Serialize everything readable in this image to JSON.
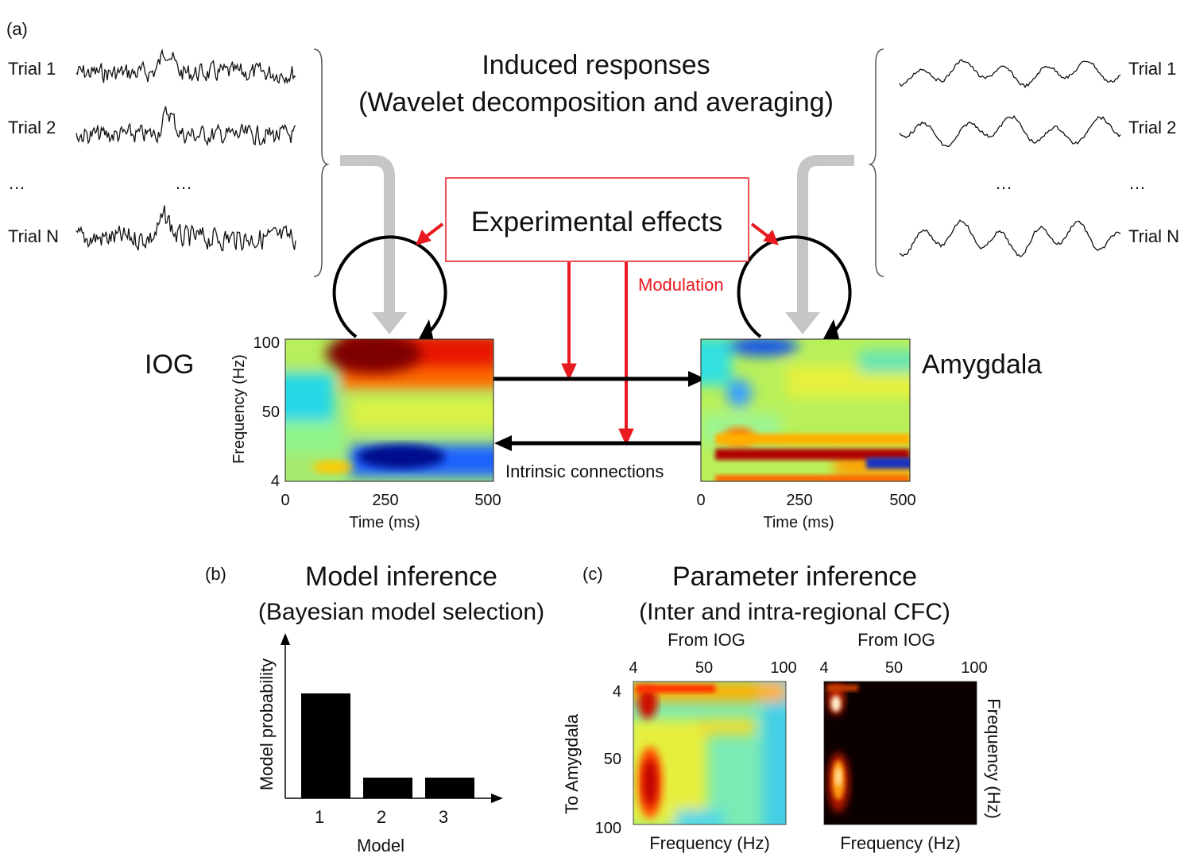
{
  "panel_a": {
    "label": "(a)",
    "title_line1": "Induced responses",
    "title_line2": "(Wavelet decomposition and averaging)",
    "left_trials": [
      "Trial 1",
      "Trial 2",
      "Trial N"
    ],
    "right_trials": [
      "Trial 1",
      "Trial 2",
      "Trial N"
    ],
    "ellipsis": "…",
    "experimental_effects": "Experimental effects",
    "modulation": "Modulation",
    "intrinsic_connections": "Intrinsic connections",
    "left_region": "IOG",
    "right_region": "Amygdala",
    "y_axis_label": "Frequency (Hz)",
    "y_ticks": [
      "100",
      "50",
      "4"
    ],
    "x_axis_label": "Time (ms)",
    "x_ticks": [
      "0",
      "250",
      "500"
    ]
  },
  "panel_b": {
    "label": "(b)",
    "title_line1": "Model inference",
    "title_line2": "(Bayesian model selection)",
    "y_label": "Model probability",
    "x_label": "Model",
    "chart_data": {
      "type": "bar",
      "categories": [
        "1",
        "2",
        "3"
      ],
      "values": [
        0.66,
        0.13,
        0.13
      ],
      "xlabel": "Model",
      "ylabel": "Model probability",
      "ylim": [
        0,
        1
      ]
    }
  },
  "panel_c": {
    "label": "(c)",
    "title_line1": "Parameter inference",
    "title_line2": "(Inter and intra-regional CFC)",
    "from_label": "From IOG",
    "to_label": "To Amygdala",
    "x_ticks": [
      "4",
      "50",
      "100"
    ],
    "y_ticks": [
      "4",
      "50",
      "100"
    ],
    "x_axis_label": "Frequency (Hz)",
    "right_y_label": "Frequency (Hz)"
  },
  "colors": {
    "signal": "#111111",
    "red": "#e8191f",
    "grey_arrow": "#c6c6c6",
    "black": "#000000"
  }
}
